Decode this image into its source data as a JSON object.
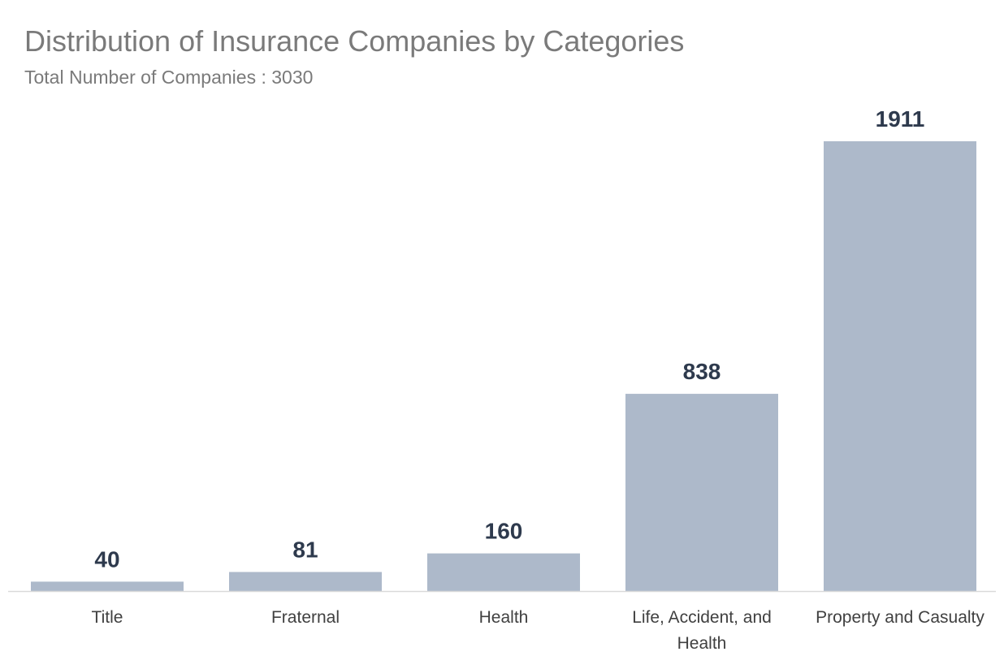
{
  "chart_data": {
    "type": "bar",
    "title": "Distribution of Insurance Companies by Categories",
    "subtitle": "Total Number of Companies : 3030",
    "categories": [
      "Title",
      "Fraternal",
      "Health",
      "Life, Accident, and Health",
      "Property and Casualty"
    ],
    "category_label_lines": [
      [
        "Title"
      ],
      [
        "Fraternal"
      ],
      [
        "Health"
      ],
      [
        "Life, Accident, and",
        "Health"
      ],
      [
        "Property and Casualty"
      ]
    ],
    "values": [
      40,
      81,
      160,
      838,
      1911
    ],
    "xlabel": "",
    "ylabel": "",
    "ylim": [
      0,
      1911
    ],
    "grid": false,
    "legend": "none",
    "data_labels": true,
    "bar_color": "#adb9ca",
    "label_color": "#2e3a4d",
    "axis_color": "#d9d9d9"
  }
}
